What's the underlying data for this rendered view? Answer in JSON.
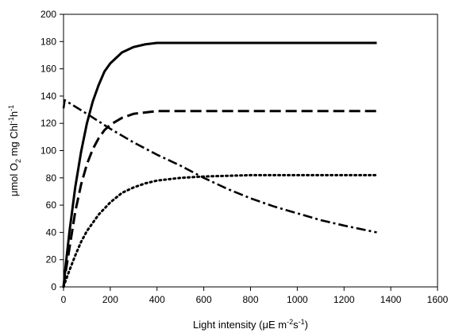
{
  "chart_data": {
    "type": "line",
    "title": "",
    "xlabel": {
      "main": "Light intensity (",
      "mu": "μ",
      "unit_a": "E m",
      "sup_a": "-2",
      "unit_b": "s",
      "sup_b": "-1",
      "close": ")"
    },
    "ylabel": {
      "mu": "μ",
      "p1": "mol O",
      "sub": "2",
      "p2": " mg Chl",
      "sup1": "-1",
      "p3": "h",
      "sup2": "-1"
    },
    "xlim": [
      0,
      1600
    ],
    "ylim": [
      0,
      200
    ],
    "xticks": [
      "0",
      "200",
      "400",
      "600",
      "800",
      "1000",
      "1200",
      "1400",
      "1600"
    ],
    "yticks": [
      "0",
      "20",
      "40",
      "60",
      "80",
      "100",
      "120",
      "140",
      "160",
      "180",
      "200"
    ],
    "grid": false,
    "legend": "none",
    "series": [
      {
        "style": "solid",
        "x": [
          0,
          10,
          25,
          50,
          75,
          100,
          125,
          150,
          175,
          200,
          250,
          300,
          350,
          400,
          500,
          600,
          800,
          1000,
          1200,
          1340
        ],
        "y": [
          0,
          17,
          40,
          73,
          99,
          120,
          136,
          148,
          158,
          164,
          172,
          176,
          178,
          179,
          179,
          179,
          179,
          179,
          179,
          179
        ]
      },
      {
        "style": "dash",
        "x": [
          0,
          10,
          25,
          50,
          75,
          100,
          125,
          150,
          175,
          200,
          250,
          300,
          350,
          400,
          500,
          600,
          800,
          1000,
          1200,
          1340
        ],
        "y": [
          0,
          12,
          28,
          55,
          75,
          90,
          101,
          109,
          115,
          119,
          124,
          127,
          128,
          129,
          129,
          129,
          129,
          129,
          129,
          129
        ]
      },
      {
        "style": "dot",
        "x": [
          0,
          10,
          25,
          50,
          75,
          100,
          150,
          200,
          250,
          300,
          350,
          400,
          500,
          600,
          800,
          1000,
          1200,
          1340
        ],
        "y": [
          0,
          5,
          12,
          23,
          33,
          41,
          53,
          62,
          69,
          73,
          76,
          78,
          80,
          81,
          82,
          82,
          82,
          82
        ]
      },
      {
        "style": "dash-dot",
        "x": [
          0,
          5,
          100,
          200,
          300,
          400,
          500,
          600,
          700,
          800,
          900,
          1000,
          1100,
          1200,
          1340
        ],
        "y": [
          131,
          137,
          127,
          116,
          106,
          97,
          89,
          80,
          72,
          65,
          59,
          54,
          49,
          45,
          40
        ]
      }
    ]
  }
}
